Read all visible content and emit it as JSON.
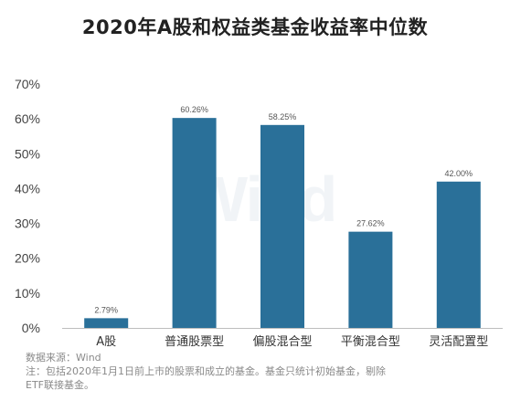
{
  "chart_data": {
    "type": "bar",
    "title": "2020年A股和权益类基金收益率中位数",
    "categories": [
      "A股",
      "普通股票型",
      "偏股混合型",
      "平衡混合型",
      "灵活配置型"
    ],
    "values": [
      2.79,
      60.26,
      58.25,
      27.62,
      42.0
    ],
    "value_labels": [
      "2.79%",
      "60.26%",
      "58.25%",
      "27.62%",
      "42.00%"
    ],
    "ylim": [
      0,
      70
    ],
    "yticks": [
      0,
      10,
      20,
      30,
      40,
      50,
      60,
      70
    ],
    "ytick_labels": [
      "0%",
      "10%",
      "20%",
      "30%",
      "40%",
      "50%",
      "60%",
      "70%"
    ],
    "xlabel": "",
    "ylabel": "",
    "grid": false,
    "legend": "none",
    "bar_color": "#2a7099"
  },
  "watermark_text": "Wind",
  "notes": {
    "source": "数据来源：Wind",
    "line1": "注：包括2020年1月1日前上市的股票和成立的基金。基金只统计初始基金，剔除",
    "line2": "ETF联接基金。"
  }
}
